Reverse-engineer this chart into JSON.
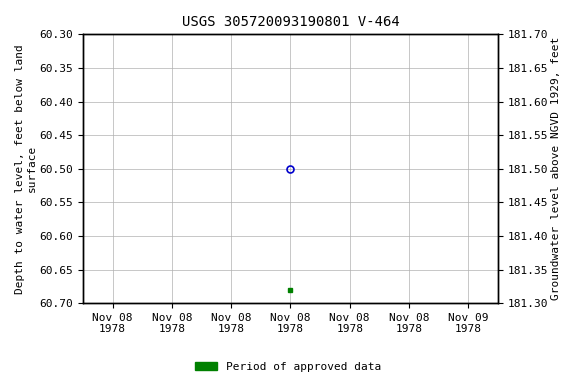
{
  "title": "USGS 305720093190801 V-464",
  "ylabel_left": "Depth to water level, feet below land\nsurface",
  "ylabel_right": "Groundwater level above NGVD 1929, feet",
  "ylim_left": [
    60.7,
    60.3
  ],
  "ylim_right": [
    181.3,
    181.7
  ],
  "yticks_left": [
    60.3,
    60.35,
    60.4,
    60.45,
    60.5,
    60.55,
    60.6,
    60.65,
    60.7
  ],
  "yticks_right": [
    181.7,
    181.65,
    181.6,
    181.55,
    181.5,
    181.45,
    181.4,
    181.35,
    181.3
  ],
  "data_points": [
    {
      "depth": 60.5,
      "type": "unapproved"
    },
    {
      "depth": 60.68,
      "type": "approved"
    }
  ],
  "xtick_labels": [
    "Nov 08\n1978",
    "Nov 08\n1978",
    "Nov 08\n1978",
    "Nov 08\n1978",
    "Nov 08\n1978",
    "Nov 08\n1978",
    "Nov 09\n1978"
  ],
  "legend_label": "Period of approved data",
  "legend_color": "#008000",
  "point_color_unapproved": "#0000cc",
  "point_color_approved": "#008000",
  "background_color": "#ffffff",
  "grid_color": "#b0b0b0",
  "title_fontsize": 10,
  "label_fontsize": 8,
  "tick_fontsize": 8
}
